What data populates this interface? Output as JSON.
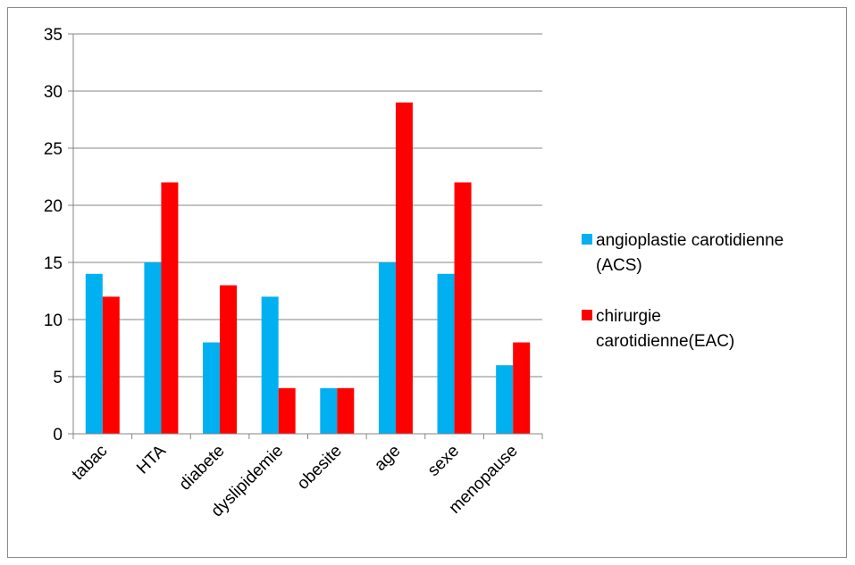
{
  "chart_data": {
    "type": "bar",
    "categories": [
      "tabac",
      "HTA",
      "diabete",
      "dyslipidemie",
      "obesite",
      "age",
      "sexe",
      "menopause"
    ],
    "series": [
      {
        "name": "angioplastie carotidienne (ACS)",
        "legend_lines": [
          "angioplastie carotidienne",
          "(ACS)"
        ],
        "color": "#00b0f0",
        "values": [
          14,
          15,
          8,
          12,
          4,
          15,
          14,
          6
        ]
      },
      {
        "name": "chirurgie carotidienne(EAC)",
        "legend_lines": [
          "chirurgie",
          "carotidienne(EAC)"
        ],
        "color": "#ff0000",
        "values": [
          12,
          22,
          13,
          4,
          4,
          29,
          22,
          8
        ]
      }
    ],
    "yticks": [
      "0",
      "5",
      "10",
      "15",
      "20",
      "25",
      "30",
      "35"
    ],
    "ylim": [
      0,
      35
    ],
    "grid": true,
    "legend_position": "right"
  }
}
